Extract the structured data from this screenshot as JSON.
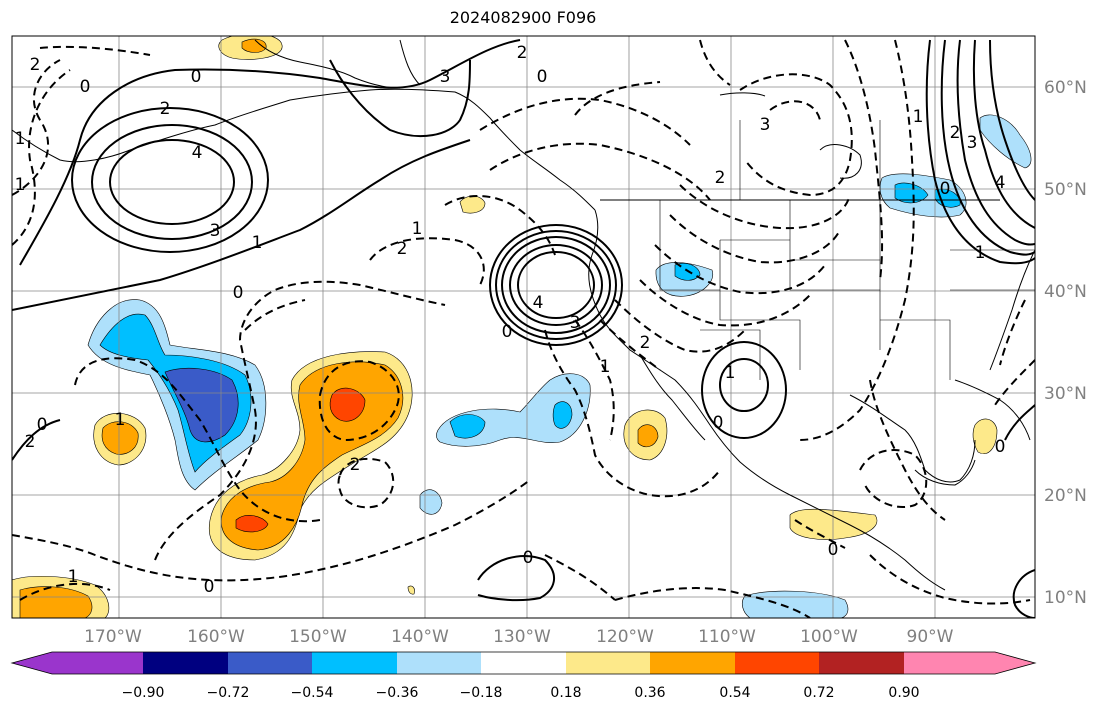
{
  "title": "2024082900 F096",
  "lon_labels": [
    "170°W",
    "160°W",
    "150°W",
    "140°W",
    "130°W",
    "120°W",
    "110°W",
    "100°W",
    "90°W"
  ],
  "lat_labels": [
    "60°N",
    "50°N",
    "40°N",
    "30°N",
    "20°N",
    "10°N"
  ],
  "colorbar": {
    "ticks": [
      "−0.90",
      "−0.72",
      "−0.54",
      "−0.36",
      "−0.18",
      "0.18",
      "0.36",
      "0.54",
      "0.72",
      "0.90"
    ],
    "colors": [
      "#9a35cc",
      "#000080",
      "#3a5bc8",
      "#00bfff",
      "#aee0fb",
      "#ffffff",
      "#fde98a",
      "#ffa500",
      "#ff4500",
      "#b22222",
      "#ff85b0"
    ]
  },
  "contour_labels": [
    "0",
    "2",
    "4",
    "3",
    "1",
    "1",
    "0",
    "2",
    "1",
    "2",
    "3",
    "4",
    "0",
    "1",
    "2",
    "3",
    "1",
    "0",
    "2",
    "1",
    "0",
    "2",
    "0",
    "0",
    "1",
    "0",
    "3",
    "0",
    "2",
    "3",
    "4",
    "1",
    "2",
    "0",
    "1",
    "2",
    "0",
    "1",
    "0"
  ]
}
